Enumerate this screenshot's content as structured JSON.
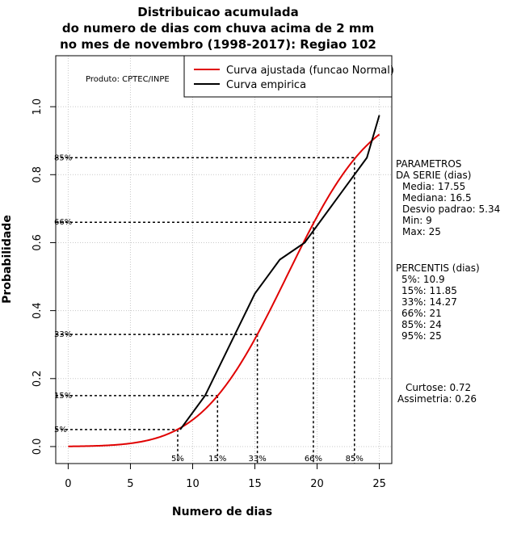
{
  "chart_data": {
    "type": "line",
    "title": [
      "Distribuicao acumulada",
      "do numero de dias com chuva acima de 2 mm",
      "no mes de novembro (1998-2017): Regiao 102"
    ],
    "xlabel": "Numero de dias",
    "ylabel": "Probabilidade",
    "xlim": [
      -1,
      26
    ],
    "ylim": [
      -0.05,
      1.15
    ],
    "xticks": [
      0,
      5,
      10,
      15,
      20,
      25
    ],
    "yticks": [
      0.0,
      0.2,
      0.4,
      0.6,
      0.8,
      1.0
    ],
    "xtick_labels": [
      "0",
      "5",
      "10",
      "15",
      "20",
      "25"
    ],
    "ytick_labels": [
      "0.0",
      "0.2",
      "0.4",
      "0.6",
      "0.8",
      "1.0"
    ],
    "grid": true,
    "producer": "Produto: CPTEC/INPE",
    "legend": {
      "position": "top-right",
      "entries": [
        {
          "name": "Curva ajustada (funcao Normal)",
          "color": "#e00000"
        },
        {
          "name": "Curva empirica",
          "color": "#000000"
        }
      ]
    },
    "fitted_normal": {
      "mean": 17.55,
      "sd": 5.34,
      "x_from": 0,
      "x_to": 25,
      "color": "#e00000"
    },
    "series": [
      {
        "name": "Curva empirica",
        "color": "#000000",
        "x": [
          9,
          11,
          13,
          15,
          16,
          17,
          19,
          21,
          22,
          24,
          25
        ],
        "y": [
          0.05,
          0.15,
          0.3,
          0.45,
          0.5,
          0.55,
          0.6,
          0.7,
          0.75,
          0.85,
          0.975
        ]
      }
    ],
    "percentile_markers": [
      {
        "label": "5%",
        "p": 0.05,
        "x": 8.8
      },
      {
        "label": "15%",
        "p": 0.15,
        "x": 12.0
      },
      {
        "label": "33%",
        "p": 0.33,
        "x": 15.2
      },
      {
        "label": "66%",
        "p": 0.66,
        "x": 19.7
      },
      {
        "label": "85%",
        "p": 0.85,
        "x": 23.0
      }
    ],
    "parameters": {
      "heading": [
        "PARAMETROS",
        "DA SERIE (dias)"
      ],
      "items": [
        "Media: 17.55",
        "Mediana: 16.5",
        "Desvio padrao: 5.34",
        "Min: 9",
        "Max: 25"
      ]
    },
    "percentiles": {
      "heading": "PERCENTIS (dias)",
      "items": [
        "5%: 10.9",
        "15%: 11.85",
        "33%: 14.27",
        "66%: 21",
        "85%: 24",
        "95%: 25"
      ]
    },
    "shape": {
      "items": [
        "Curtose: 0.72",
        "Assimetria: 0.26"
      ]
    }
  }
}
